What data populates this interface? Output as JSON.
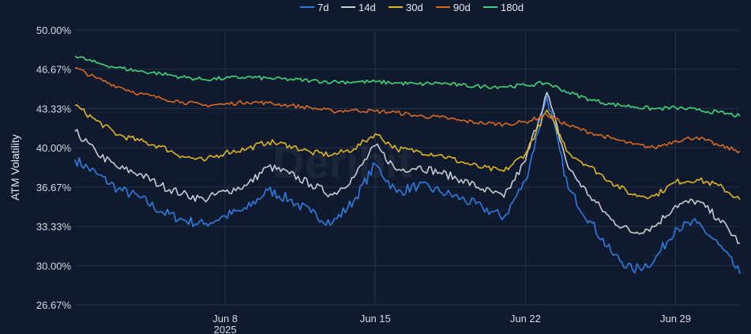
{
  "chart_data": {
    "type": "line",
    "title": "",
    "xlabel": "",
    "ylabel": "ATM Volatility",
    "ylim": [
      26.67,
      50.0
    ],
    "y_ticks": [
      "50.00%",
      "46.67%",
      "43.33%",
      "40.00%",
      "36.67%",
      "33.33%",
      "30.00%",
      "26.67%"
    ],
    "y_tick_values": [
      50.0,
      46.67,
      43.33,
      40.0,
      36.67,
      33.33,
      30.0,
      26.67
    ],
    "x_range": [
      "2025-06-01",
      "2025-07-02"
    ],
    "x_ticks": [
      {
        "date": "2025-06-08",
        "label": "Jun 8",
        "sublabel": "2025"
      },
      {
        "date": "2025-06-15",
        "label": "Jun 15",
        "sublabel": ""
      },
      {
        "date": "2025-06-22",
        "label": "Jun 22",
        "sublabel": ""
      },
      {
        "date": "2025-06-29",
        "label": "Jun 29",
        "sublabel": ""
      }
    ],
    "grid": true,
    "legend_position": "top-center",
    "series": [
      {
        "name": "7d",
        "color": "#2f7de1",
        "points": [
          [
            "2025-06-01",
            39.0
          ],
          [
            "2025-06-02",
            37.8
          ],
          [
            "2025-06-03",
            36.5
          ],
          [
            "2025-06-04",
            35.8
          ],
          [
            "2025-06-05",
            34.6
          ],
          [
            "2025-06-06",
            33.9
          ],
          [
            "2025-06-07",
            33.5
          ],
          [
            "2025-06-08",
            34.2
          ],
          [
            "2025-06-09",
            34.8
          ],
          [
            "2025-06-10",
            36.4
          ],
          [
            "2025-06-11",
            35.6
          ],
          [
            "2025-06-12",
            34.5
          ],
          [
            "2025-06-13",
            33.6
          ],
          [
            "2025-06-14",
            35.5
          ],
          [
            "2025-06-15",
            38.6
          ],
          [
            "2025-06-16",
            36.2
          ],
          [
            "2025-06-17",
            36.8
          ],
          [
            "2025-06-18",
            36.3
          ],
          [
            "2025-06-19",
            35.7
          ],
          [
            "2025-06-20",
            34.9
          ],
          [
            "2025-06-21",
            34.1
          ],
          [
            "2025-06-22",
            37.2
          ],
          [
            "2025-06-23",
            44.4
          ],
          [
            "2025-06-24",
            36.5
          ],
          [
            "2025-06-25",
            33.8
          ],
          [
            "2025-06-26",
            31.1
          ],
          [
            "2025-06-27",
            29.6
          ],
          [
            "2025-06-28",
            30.4
          ],
          [
            "2025-06-29",
            33.2
          ],
          [
            "2025-06-30",
            33.6
          ],
          [
            "2025-07-01",
            31.8
          ],
          [
            "2025-07-02",
            29.3
          ]
        ]
      },
      {
        "name": "14d",
        "color": "#c8ccd4",
        "points": [
          [
            "2025-06-01",
            41.4
          ],
          [
            "2025-06-02",
            39.6
          ],
          [
            "2025-06-03",
            38.3
          ],
          [
            "2025-06-04",
            37.8
          ],
          [
            "2025-06-05",
            36.8
          ],
          [
            "2025-06-06",
            36.1
          ],
          [
            "2025-06-07",
            35.6
          ],
          [
            "2025-06-08",
            36.3
          ],
          [
            "2025-06-09",
            36.8
          ],
          [
            "2025-06-10",
            38.4
          ],
          [
            "2025-06-11",
            37.8
          ],
          [
            "2025-06-12",
            36.9
          ],
          [
            "2025-06-13",
            36.0
          ],
          [
            "2025-06-14",
            37.5
          ],
          [
            "2025-06-15",
            40.2
          ],
          [
            "2025-06-16",
            38.1
          ],
          [
            "2025-06-17",
            38.4
          ],
          [
            "2025-06-18",
            37.9
          ],
          [
            "2025-06-19",
            37.3
          ],
          [
            "2025-06-20",
            36.5
          ],
          [
            "2025-06-21",
            35.8
          ],
          [
            "2025-06-22",
            38.9
          ],
          [
            "2025-06-23",
            44.7
          ],
          [
            "2025-06-24",
            38.3
          ],
          [
            "2025-06-25",
            35.9
          ],
          [
            "2025-06-26",
            33.9
          ],
          [
            "2025-06-27",
            32.8
          ],
          [
            "2025-06-28",
            33.3
          ],
          [
            "2025-06-29",
            35.1
          ],
          [
            "2025-06-30",
            35.5
          ],
          [
            "2025-07-01",
            34.0
          ],
          [
            "2025-07-02",
            31.9
          ]
        ]
      },
      {
        "name": "30d",
        "color": "#e0b51e",
        "points": [
          [
            "2025-06-01",
            43.6
          ],
          [
            "2025-06-02",
            42.3
          ],
          [
            "2025-06-03",
            41.1
          ],
          [
            "2025-06-04",
            40.6
          ],
          [
            "2025-06-05",
            40.1
          ],
          [
            "2025-06-06",
            39.3
          ],
          [
            "2025-06-07",
            38.9
          ],
          [
            "2025-06-08",
            39.6
          ],
          [
            "2025-06-09",
            39.9
          ],
          [
            "2025-06-10",
            40.5
          ],
          [
            "2025-06-11",
            40.2
          ],
          [
            "2025-06-12",
            39.6
          ],
          [
            "2025-06-13",
            39.4
          ],
          [
            "2025-06-14",
            39.9
          ],
          [
            "2025-06-15",
            41.2
          ],
          [
            "2025-06-16",
            39.9
          ],
          [
            "2025-06-17",
            39.7
          ],
          [
            "2025-06-18",
            39.4
          ],
          [
            "2025-06-19",
            38.8
          ],
          [
            "2025-06-20",
            38.3
          ],
          [
            "2025-06-21",
            38.0
          ],
          [
            "2025-06-22",
            39.5
          ],
          [
            "2025-06-23",
            43.2
          ],
          [
            "2025-06-24",
            39.6
          ],
          [
            "2025-06-25",
            38.4
          ],
          [
            "2025-06-26",
            37.1
          ],
          [
            "2025-06-27",
            36.0
          ],
          [
            "2025-06-28",
            35.9
          ],
          [
            "2025-06-29",
            37.1
          ],
          [
            "2025-06-30",
            37.3
          ],
          [
            "2025-07-01",
            36.8
          ],
          [
            "2025-07-02",
            35.6
          ]
        ]
      },
      {
        "name": "90d",
        "color": "#d96a1e",
        "points": [
          [
            "2025-06-01",
            46.8
          ],
          [
            "2025-06-02",
            45.9
          ],
          [
            "2025-06-03",
            45.2
          ],
          [
            "2025-06-04",
            44.6
          ],
          [
            "2025-06-05",
            44.2
          ],
          [
            "2025-06-06",
            43.9
          ],
          [
            "2025-06-07",
            43.6
          ],
          [
            "2025-06-08",
            43.7
          ],
          [
            "2025-06-09",
            43.9
          ],
          [
            "2025-06-10",
            43.8
          ],
          [
            "2025-06-11",
            43.6
          ],
          [
            "2025-06-12",
            43.4
          ],
          [
            "2025-06-13",
            43.1
          ],
          [
            "2025-06-14",
            43.2
          ],
          [
            "2025-06-15",
            43.1
          ],
          [
            "2025-06-16",
            43.0
          ],
          [
            "2025-06-17",
            42.7
          ],
          [
            "2025-06-18",
            42.6
          ],
          [
            "2025-06-19",
            42.3
          ],
          [
            "2025-06-20",
            42.1
          ],
          [
            "2025-06-21",
            42.0
          ],
          [
            "2025-06-22",
            42.2
          ],
          [
            "2025-06-23",
            42.8
          ],
          [
            "2025-06-24",
            41.9
          ],
          [
            "2025-06-25",
            41.3
          ],
          [
            "2025-06-26",
            40.8
          ],
          [
            "2025-06-27",
            40.3
          ],
          [
            "2025-06-28",
            40.0
          ],
          [
            "2025-06-29",
            40.6
          ],
          [
            "2025-06-30",
            40.9
          ],
          [
            "2025-07-01",
            40.2
          ],
          [
            "2025-07-02",
            39.7
          ]
        ]
      },
      {
        "name": "180d",
        "color": "#3ed67a",
        "points": [
          [
            "2025-06-01",
            47.8
          ],
          [
            "2025-06-02",
            47.2
          ],
          [
            "2025-06-03",
            46.8
          ],
          [
            "2025-06-04",
            46.5
          ],
          [
            "2025-06-05",
            46.3
          ],
          [
            "2025-06-06",
            46.0
          ],
          [
            "2025-06-07",
            45.8
          ],
          [
            "2025-06-08",
            45.9
          ],
          [
            "2025-06-09",
            46.0
          ],
          [
            "2025-06-10",
            45.9
          ],
          [
            "2025-06-11",
            45.8
          ],
          [
            "2025-06-12",
            45.7
          ],
          [
            "2025-06-13",
            45.6
          ],
          [
            "2025-06-14",
            45.6
          ],
          [
            "2025-06-15",
            45.6
          ],
          [
            "2025-06-16",
            45.5
          ],
          [
            "2025-06-17",
            45.4
          ],
          [
            "2025-06-18",
            45.5
          ],
          [
            "2025-06-19",
            45.3
          ],
          [
            "2025-06-20",
            45.2
          ],
          [
            "2025-06-21",
            45.2
          ],
          [
            "2025-06-22",
            45.3
          ],
          [
            "2025-06-23",
            45.5
          ],
          [
            "2025-06-24",
            44.7
          ],
          [
            "2025-06-25",
            44.1
          ],
          [
            "2025-06-26",
            43.7
          ],
          [
            "2025-06-27",
            43.5
          ],
          [
            "2025-06-28",
            43.3
          ],
          [
            "2025-06-29",
            43.4
          ],
          [
            "2025-06-30",
            43.2
          ],
          [
            "2025-07-01",
            43.0
          ],
          [
            "2025-07-02",
            42.7
          ]
        ]
      }
    ]
  },
  "watermark": "Deribit"
}
